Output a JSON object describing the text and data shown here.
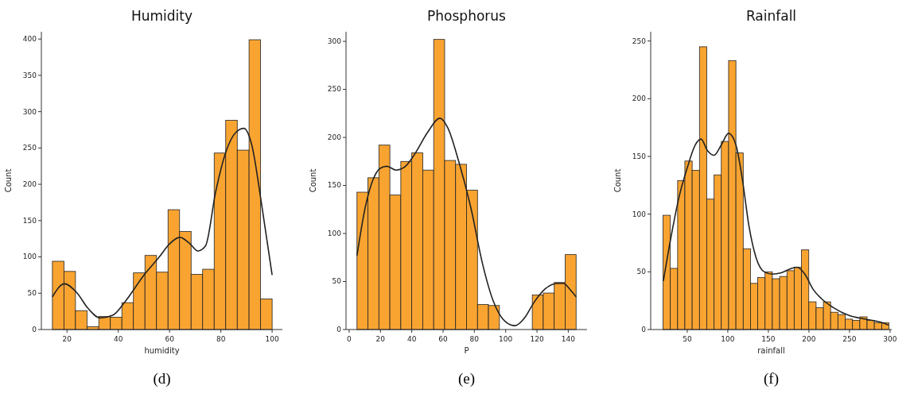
{
  "chart_data": [
    {
      "type": "histogram",
      "title": "Humidity",
      "xlabel": "humidity",
      "ylabel": "Count",
      "color": "#f9a431",
      "bins": [
        14.3,
        18.8,
        23.3,
        27.8,
        32.4,
        36.9,
        41.4,
        45.9,
        50.4,
        54.9,
        59.4,
        63.9,
        68.4,
        72.9,
        77.4,
        81.9,
        86.4,
        91.0,
        95.5,
        100.0
      ],
      "values": [
        94,
        80,
        26,
        4,
        18,
        17,
        37,
        78,
        102,
        79,
        165,
        135,
        76,
        83,
        243,
        288,
        247,
        399,
        42
      ],
      "series": [
        {
          "type": "line",
          "color": "#222222",
          "x": [
            14.3,
            19,
            24,
            28,
            33,
            38,
            43,
            50,
            56,
            60,
            64,
            68,
            71,
            74,
            78,
            82,
            86,
            89,
            92,
            96,
            100
          ],
          "values": [
            45,
            63,
            50,
            30,
            16,
            20,
            40,
            75,
            100,
            118,
            127,
            118,
            108,
            115,
            190,
            245,
            272,
            277,
            255,
            170,
            75
          ]
        }
      ],
      "xlim": [
        10,
        104
      ],
      "xticks": [
        20,
        40,
        60,
        80,
        100
      ],
      "ylim": [
        0,
        410
      ],
      "yticks": [
        0,
        50,
        100,
        150,
        200,
        250,
        300,
        350,
        400
      ],
      "annotations": [
        "(d)"
      ]
    },
    {
      "type": "histogram",
      "title": "Phosphorus",
      "xlabel": "P",
      "ylabel": "Count",
      "color": "#f9a431",
      "bins": [
        5,
        12,
        19,
        26,
        33,
        40,
        47,
        54,
        61,
        68,
        75,
        82,
        89,
        96,
        103,
        110,
        117,
        124,
        131,
        138,
        145
      ],
      "values": [
        143,
        158,
        192,
        140,
        175,
        184,
        166,
        302,
        176,
        172,
        145,
        26,
        25,
        0,
        0,
        0,
        36,
        38,
        49,
        78
      ],
      "series": [
        {
          "type": "line",
          "color": "#222222",
          "x": [
            5,
            10,
            15,
            20,
            24,
            30,
            36,
            42,
            50,
            58,
            63,
            70,
            78,
            85,
            92,
            100,
            106,
            112,
            118,
            125,
            133,
            137,
            141,
            145
          ],
          "values": [
            77,
            125,
            155,
            168,
            170,
            166,
            170,
            183,
            205,
            220,
            210,
            175,
            125,
            70,
            30,
            8,
            4,
            12,
            28,
            42,
            48,
            48,
            42,
            34
          ]
        }
      ],
      "xlim": [
        -2,
        152
      ],
      "xticks": [
        0,
        20,
        40,
        60,
        80,
        100,
        120,
        140
      ],
      "ylim": [
        0,
        310
      ],
      "yticks": [
        0,
        50,
        100,
        150,
        200,
        250,
        300
      ],
      "annotations": [
        "(e)"
      ]
    },
    {
      "type": "histogram",
      "title": "Rainfall",
      "xlabel": "rainfall",
      "ylabel": "Count",
      "color": "#f9a431",
      "bins": [
        20.2,
        29.2,
        38.2,
        47.1,
        56.1,
        65.1,
        74.1,
        83.1,
        92.0,
        101.0,
        110.0,
        119.0,
        128.0,
        136.9,
        145.9,
        154.9,
        163.9,
        172.9,
        181.8,
        190.8,
        199.8,
        208.8,
        217.8,
        226.7,
        235.7,
        244.7,
        253.7,
        262.7,
        271.6,
        280.6,
        289.6,
        298.6
      ],
      "values": [
        99,
        53,
        129,
        146,
        138,
        245,
        113,
        134,
        163,
        233,
        153,
        70,
        40,
        45,
        50,
        44,
        46,
        51,
        54,
        69,
        24,
        19,
        24,
        15,
        13,
        9,
        8,
        11,
        8,
        6,
        6
      ],
      "series": [
        {
          "type": "line",
          "color": "#222222",
          "x": [
            20.6,
            30,
            40,
            50,
            60,
            67,
            75,
            83,
            92,
            101,
            110,
            118,
            126,
            135,
            145,
            155,
            165,
            175,
            185,
            195,
            205,
            215,
            230,
            250,
            270,
            290,
            298
          ],
          "values": [
            42,
            80,
            115,
            140,
            160,
            165,
            155,
            151,
            160,
            170,
            160,
            130,
            90,
            62,
            50,
            48,
            49,
            52,
            54,
            48,
            35,
            27,
            19,
            12,
            9,
            6,
            4
          ]
        }
      ],
      "xlim": [
        5,
        302
      ],
      "xticks": [
        50,
        100,
        150,
        200,
        250,
        300
      ],
      "ylim": [
        0,
        258
      ],
      "yticks": [
        0,
        50,
        100,
        150,
        200,
        250
      ],
      "annotations": [
        "(f)"
      ]
    }
  ]
}
